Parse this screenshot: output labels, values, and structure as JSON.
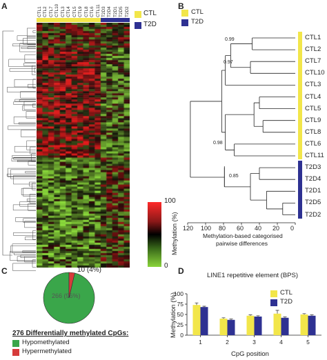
{
  "panels": {
    "a": "A",
    "b": "B",
    "c": "C",
    "d": "D"
  },
  "colors": {
    "ctl": "#f2e64a",
    "t2d": "#2e3192",
    "hypo": "#3aa64a",
    "hyper": "#d63b3b"
  },
  "heatmap": {
    "columns": [
      "CTL1",
      "CTL2",
      "CTL7",
      "CTL10",
      "CTL3",
      "CTL4",
      "CTL5",
      "CTL9",
      "CTL8",
      "CTL6",
      "CTL11",
      "T2D3",
      "T2D4",
      "T2D1",
      "T2D5",
      "T2D2"
    ],
    "legend": {
      "ctl": "CTL",
      "t2d": "T2D"
    },
    "colorbar": {
      "max": "100",
      "min": "0",
      "label": "Methylation (%)"
    }
  },
  "dendrogram": {
    "legend": {
      "ctl": "CTL",
      "t2d": "T2D"
    },
    "leaves": [
      "CTL1",
      "CTL2",
      "CTL7",
      "CTL10",
      "CTL3",
      "CTL4",
      "CTL5",
      "CTL9",
      "CTL8",
      "CTL6",
      "CTL11",
      "T2D3",
      "T2D4",
      "T2D1",
      "T2D5",
      "T2D2"
    ],
    "bootstrap": [
      "0.99",
      "0.97",
      "0.98",
      "0.85"
    ],
    "axis_ticks": [
      "120",
      "100",
      "80",
      "60",
      "40",
      "20",
      "0"
    ],
    "xlabel_line1": "Methylation-based categorised",
    "xlabel_line2": "pairwise differences"
  },
  "pie": {
    "hyper_label": "10 (4%)",
    "hypo_label": "266 (96%)",
    "caption": "276 Differentially methylated CpGs:",
    "legend": [
      "Hypomethylated",
      "Hypermethylated"
    ]
  },
  "chart_data": {
    "type": "bar",
    "title": "LINE1 repetitive element (BPS)",
    "xlabel": "CpG position",
    "ylabel": "Methylation (%)",
    "categories": [
      "1",
      "2",
      "3",
      "4",
      "5"
    ],
    "ylim": [
      0,
      100
    ],
    "yticks": [
      "0",
      "25",
      "50",
      "75",
      "100"
    ],
    "series": [
      {
        "name": "CTL",
        "values": [
          73,
          40,
          47,
          52,
          50
        ],
        "errors": [
          5,
          2,
          2,
          8,
          2
        ]
      },
      {
        "name": "T2D",
        "values": [
          68,
          37,
          45,
          42,
          47
        ],
        "errors": [
          2,
          2,
          2,
          2,
          2
        ]
      }
    ]
  }
}
